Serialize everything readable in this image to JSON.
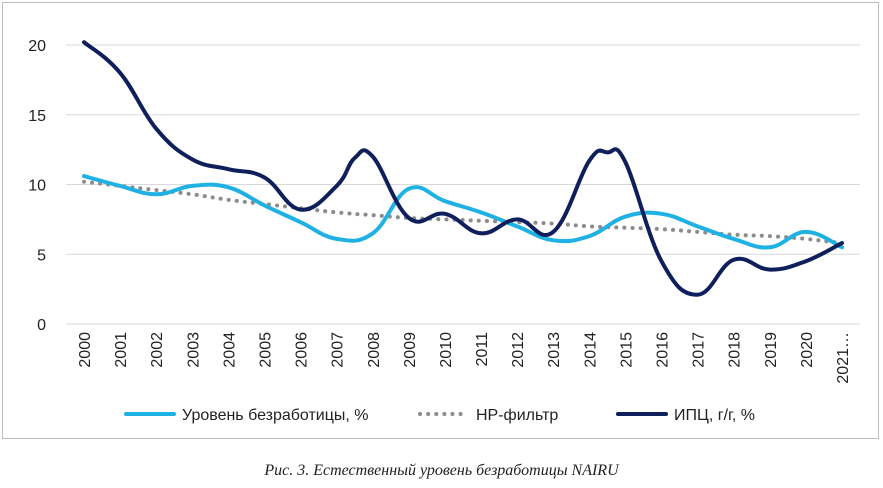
{
  "chart_data": {
    "type": "line",
    "title": "",
    "xlabel": "",
    "ylabel": "",
    "ylim": [
      0,
      20
    ],
    "yticks": [
      0,
      5,
      10,
      15,
      20
    ],
    "grid": true,
    "categories": [
      "2000",
      "2001",
      "2002",
      "2003",
      "2004",
      "2005",
      "2006",
      "2007",
      "2008",
      "2009",
      "2010",
      "2011",
      "2012",
      "2013",
      "2014",
      "2015",
      "2016",
      "2017",
      "2018",
      "2019",
      "2020",
      "2021…"
    ],
    "series": [
      {
        "name": "Уровень безработицы, %",
        "color": "#1fb1e4",
        "style": "solid",
        "x": [
          0,
          1,
          2,
          3,
          4,
          5,
          6,
          7,
          8,
          9,
          10,
          11,
          12,
          13,
          14,
          15,
          16,
          17,
          18,
          19,
          20,
          21
        ],
        "values": [
          10.6,
          9.9,
          9.3,
          9.9,
          9.8,
          8.5,
          7.3,
          6.1,
          6.5,
          9.7,
          8.8,
          8.0,
          7.0,
          6.0,
          6.3,
          7.7,
          7.9,
          7.0,
          6.1,
          5.5,
          6.6,
          5.5
        ]
      },
      {
        "name": "HP-фильтр",
        "color": "#8c8c8c",
        "style": "dotted",
        "x": [
          0,
          1,
          2,
          3,
          4,
          5,
          6,
          7,
          8,
          9,
          10,
          11,
          12,
          13,
          14,
          15,
          16,
          17,
          18,
          19,
          20,
          21
        ],
        "values": [
          10.2,
          9.9,
          9.6,
          9.3,
          8.9,
          8.6,
          8.3,
          8.0,
          7.8,
          7.6,
          7.5,
          7.4,
          7.3,
          7.2,
          7.0,
          6.9,
          6.8,
          6.6,
          6.4,
          6.3,
          6.1,
          5.8
        ]
      },
      {
        "name": "ИПЦ, г/г, %",
        "color": "#0f1f5b",
        "style": "solid",
        "x": [
          0,
          1,
          2,
          3,
          4,
          5,
          6,
          7,
          7.5,
          8,
          9,
          10,
          11,
          12,
          13,
          14,
          14.5,
          15,
          16,
          17,
          18,
          19,
          20,
          21
        ],
        "values": [
          20.2,
          18.0,
          14.0,
          11.8,
          11.1,
          10.5,
          8.2,
          9.9,
          11.9,
          12.0,
          7.6,
          7.9,
          6.5,
          7.5,
          6.6,
          11.7,
          12.3,
          11.6,
          4.5,
          2.1,
          4.6,
          3.9,
          4.5,
          5.8
        ]
      }
    ]
  },
  "caption": "Рис. 3. Естественный уровень безработицы NAIRU"
}
